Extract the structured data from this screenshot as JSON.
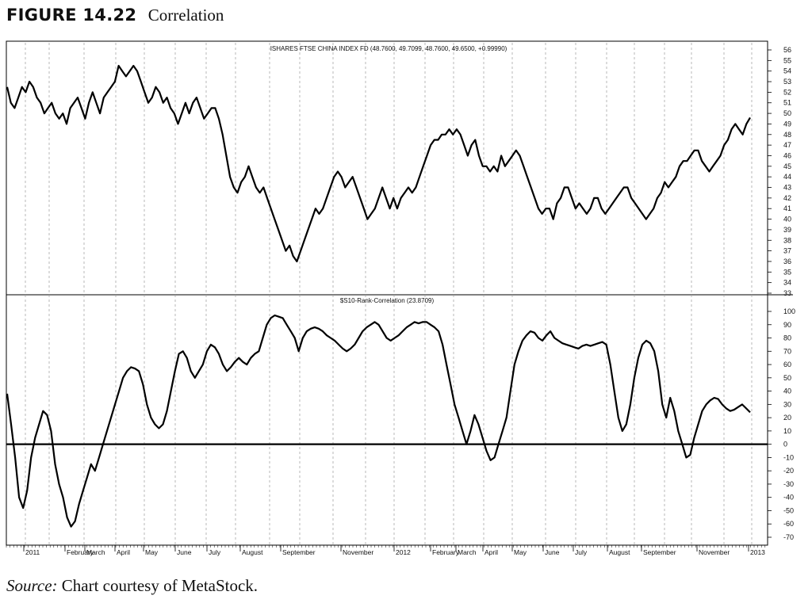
{
  "figure": {
    "label": "FIGURE 14.22",
    "caption": "Correlation"
  },
  "source": {
    "label": "Source:",
    "text": "Chart courtesy of MetaStock."
  },
  "chart_data": [
    {
      "type": "line",
      "title": "ISHARES FTSE CHINA INDEX FD (48.7600, 49.7099, 48.7600, 49.6500, +0.99990)",
      "ylim": [
        33,
        56
      ],
      "yticks": [
        33,
        34,
        35,
        36,
        37,
        38,
        39,
        40,
        41,
        42,
        43,
        44,
        45,
        46,
        47,
        48,
        49,
        50,
        51,
        52,
        53,
        54,
        55,
        56
      ],
      "grid": "vertical-dashed",
      "x_labels": [
        "2011",
        "February",
        "March",
        "April",
        "May",
        "June",
        "July",
        "August",
        "September",
        "November",
        "2012",
        "February",
        "March",
        "April",
        "May",
        "June",
        "July",
        "August",
        "September",
        "November",
        "2013"
      ],
      "series": [
        {
          "values": [
            52.5,
            51,
            50.5,
            51.5,
            52.5,
            52,
            53,
            52.5,
            51.5,
            51,
            50,
            50.5,
            51,
            50,
            49.5,
            50,
            49,
            50.5,
            51,
            51.5,
            50.5,
            49.5,
            51,
            52,
            51,
            50,
            51.5,
            52,
            52.5,
            53,
            54.5,
            54,
            53.5,
            54,
            54.5,
            54,
            53,
            52,
            51,
            51.5,
            52.5,
            52,
            51,
            51.5,
            50.5,
            50,
            49,
            50,
            51,
            50,
            51,
            51.5,
            50.5,
            49.5,
            50,
            50.5,
            50.5,
            49.5,
            48,
            46,
            44,
            43,
            42.5,
            43.5,
            44,
            45,
            44,
            43,
            42.5,
            43,
            42,
            41,
            40,
            39,
            38,
            37,
            37.5,
            36.5,
            36,
            37,
            38,
            39,
            40,
            41,
            40.5,
            41,
            42,
            43,
            44,
            44.5,
            44,
            43,
            43.5,
            44,
            43,
            42,
            41,
            40,
            40.5,
            41,
            42,
            43,
            42,
            41,
            42,
            41,
            42,
            42.5,
            43,
            42.5,
            43,
            44,
            45,
            46,
            47,
            47.5,
            47.5,
            48,
            48,
            48.5,
            48,
            48.5,
            48,
            47,
            46,
            47,
            47.5,
            46,
            45,
            45,
            44.5,
            45,
            44.5,
            46,
            45,
            45.5,
            46,
            46.5,
            46,
            45,
            44,
            43,
            42,
            41,
            40.5,
            41,
            41,
            40,
            41.5,
            42,
            43,
            43,
            42,
            41,
            41.5,
            41,
            40.5,
            41,
            42,
            42,
            41,
            40.5,
            41,
            41.5,
            42,
            42.5,
            43,
            43,
            42,
            41.5,
            41,
            40.5,
            40,
            40.5,
            41,
            42,
            42.5,
            43.5,
            43,
            43.5,
            44,
            45,
            45.5,
            45.5,
            46,
            46.5,
            46.5,
            45.5,
            45,
            44.5,
            45,
            45.5,
            46,
            47,
            47.5,
            48.5,
            49,
            48.5,
            48,
            49,
            49.6
          ]
        }
      ]
    },
    {
      "type": "line",
      "title": "$S10-Rank-Correlation (23.8709)",
      "ylim": [
        -70,
        100
      ],
      "yticks": [
        -70,
        -60,
        -50,
        -40,
        -30,
        -20,
        -10,
        0,
        10,
        20,
        30,
        40,
        50,
        60,
        70,
        80,
        90,
        100
      ],
      "zero_line": 0,
      "grid": "vertical-dashed",
      "x_labels": [
        "2011",
        "February",
        "March",
        "April",
        "May",
        "June",
        "July",
        "August",
        "September",
        "November",
        "2012",
        "February",
        "March",
        "April",
        "May",
        "June",
        "July",
        "August",
        "September",
        "November",
        "2013"
      ],
      "series": [
        {
          "values": [
            38,
            15,
            -10,
            -40,
            -48,
            -35,
            -10,
            5,
            15,
            25,
            22,
            10,
            -15,
            -30,
            -40,
            -55,
            -62,
            -58,
            -45,
            -35,
            -25,
            -15,
            -20,
            -10,
            0,
            10,
            20,
            30,
            40,
            50,
            55,
            58,
            57,
            55,
            45,
            30,
            20,
            15,
            12,
            15,
            25,
            40,
            55,
            68,
            70,
            65,
            55,
            50,
            55,
            60,
            70,
            75,
            73,
            68,
            60,
            55,
            58,
            62,
            65,
            62,
            60,
            65,
            68,
            70,
            80,
            90,
            95,
            97,
            96,
            95,
            90,
            85,
            80,
            70,
            80,
            85,
            87,
            88,
            87,
            85,
            82,
            80,
            78,
            75,
            72,
            70,
            72,
            75,
            80,
            85,
            88,
            90,
            92,
            90,
            85,
            80,
            78,
            80,
            82,
            85,
            88,
            90,
            92,
            91,
            92,
            92,
            90,
            88,
            85,
            75,
            60,
            45,
            30,
            20,
            10,
            0,
            10,
            22,
            15,
            5,
            -5,
            -12,
            -10,
            0,
            10,
            20,
            40,
            60,
            70,
            78,
            82,
            85,
            84,
            80,
            78,
            82,
            85,
            80,
            78,
            76,
            75,
            74,
            73,
            72,
            74,
            75,
            74,
            75,
            76,
            77,
            75,
            60,
            40,
            20,
            10,
            15,
            30,
            50,
            65,
            75,
            78,
            76,
            70,
            55,
            30,
            20,
            35,
            25,
            10,
            0,
            -10,
            -8,
            5,
            15,
            25,
            30,
            33,
            35,
            34,
            30,
            27,
            25,
            26,
            28,
            30,
            27,
            24
          ]
        }
      ]
    }
  ]
}
